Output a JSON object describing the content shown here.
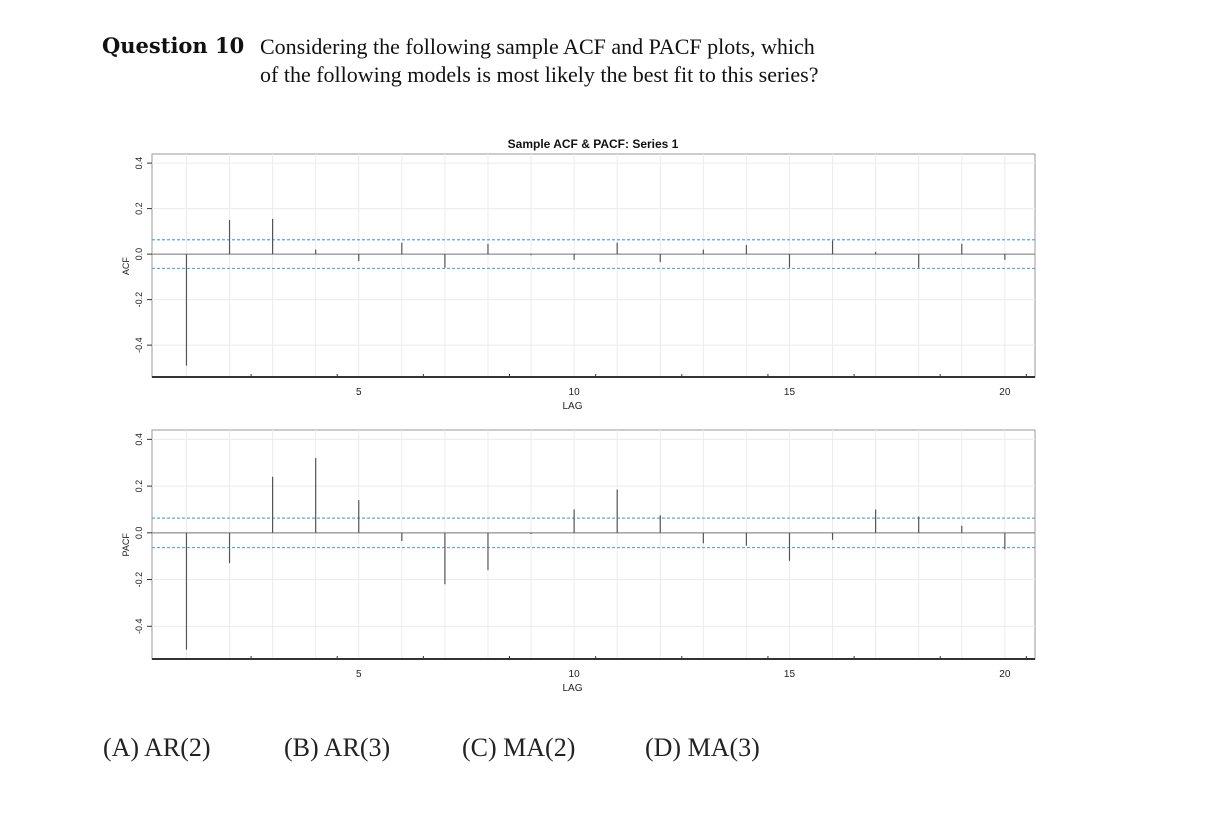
{
  "question": {
    "label": "Question 10",
    "line1": "Considering the following sample ACF and PACF plots, which",
    "line2": "of the following models is most likely the best fit to this series?"
  },
  "options": [
    {
      "label": "(A) AR(2)"
    },
    {
      "label": "(B) AR(3)"
    },
    {
      "label": "(C) MA(2)"
    },
    {
      "label": "(D) MA(3)"
    }
  ],
  "chart_data": [
    {
      "type": "bar",
      "title": "Sample ACF & PACF: Series 1",
      "ylabel": "ACF",
      "xlabel": "LAG",
      "xlim": [
        0.2,
        20.7
      ],
      "ylim": [
        -0.54,
        0.44
      ],
      "x_ticks": [
        5,
        10,
        15,
        20
      ],
      "y_ticks": [
        -0.4,
        -0.2,
        0.0,
        0.2,
        0.4
      ],
      "y_tick_labels": [
        "-0.4",
        "-0.2",
        "0.0",
        "0.2",
        "0.4"
      ],
      "grid": true,
      "significance_bounds": [
        0.063,
        -0.063
      ],
      "significance_color": "#5aa7e0",
      "lags": [
        1,
        2,
        3,
        4,
        5,
        6,
        7,
        8,
        9,
        10,
        11,
        12,
        13,
        14,
        15,
        16,
        17,
        18,
        19,
        20
      ],
      "values": [
        -0.49,
        0.15,
        0.155,
        0.02,
        -0.03,
        0.05,
        -0.06,
        0.045,
        -0.005,
        -0.025,
        0.05,
        -0.035,
        0.02,
        0.04,
        -0.06,
        0.06,
        0.01,
        -0.06,
        0.045,
        -0.025
      ]
    },
    {
      "type": "bar",
      "title": "",
      "ylabel": "PACF",
      "xlabel": "LAG",
      "xlim": [
        0.2,
        20.7
      ],
      "ylim": [
        -0.54,
        0.44
      ],
      "x_ticks": [
        5,
        10,
        15,
        20
      ],
      "y_ticks": [
        -0.4,
        -0.2,
        0.0,
        0.2,
        0.4
      ],
      "y_tick_labels": [
        "-0.4",
        "-0.2",
        "0.0",
        "0.2",
        "0.4"
      ],
      "grid": true,
      "significance_bounds": [
        0.063,
        -0.063
      ],
      "significance_color": "#5aa7e0",
      "lags": [
        1,
        2,
        3,
        4,
        5,
        6,
        7,
        8,
        9,
        10,
        11,
        12,
        13,
        14,
        15,
        16,
        17,
        18,
        19,
        20
      ],
      "values": [
        -0.5,
        -0.13,
        0.24,
        0.32,
        0.14,
        -0.035,
        -0.22,
        -0.16,
        -0.005,
        0.1,
        0.185,
        0.075,
        -0.045,
        -0.055,
        -0.12,
        -0.03,
        0.1,
        0.07,
        0.03,
        -0.07
      ]
    }
  ]
}
